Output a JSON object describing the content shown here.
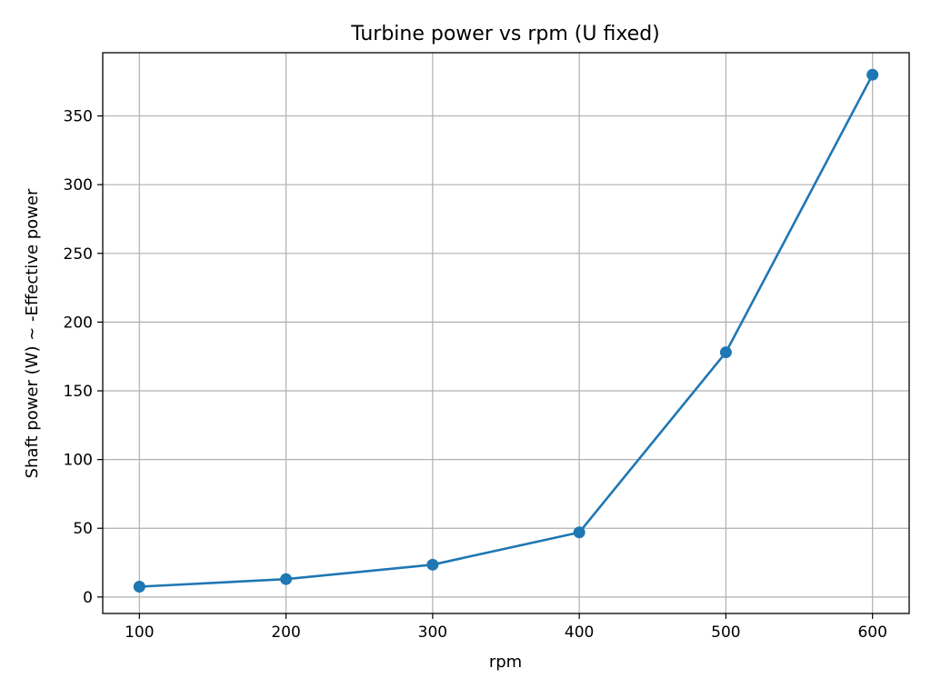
{
  "chart_data": {
    "type": "line",
    "title": "Turbine power vs rpm (U fixed)",
    "xlabel": "rpm",
    "ylabel": "Shaft power (W)  ~  -Effective power",
    "x": [
      100,
      200,
      300,
      400,
      500,
      600
    ],
    "series": [
      {
        "values": [
          7.5,
          13,
          23.5,
          47,
          178,
          380
        ],
        "color": "#1f77b4",
        "marker": "circle"
      }
    ],
    "xlim": [
      75,
      625
    ],
    "ylim": [
      -12,
      396
    ],
    "xticks": [
      100,
      200,
      300,
      400,
      500,
      600
    ],
    "yticks": [
      0,
      50,
      100,
      150,
      200,
      250,
      300,
      350
    ],
    "grid": true
  }
}
